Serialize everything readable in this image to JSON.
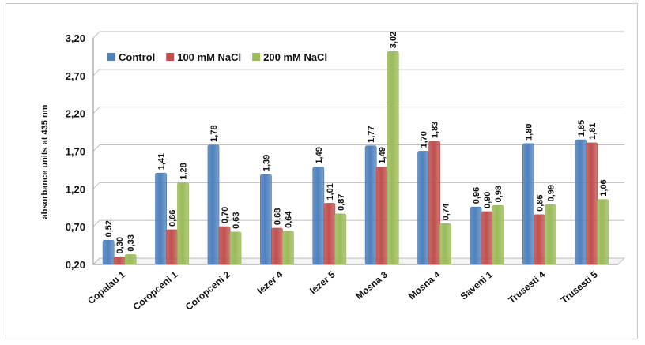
{
  "chart_data": {
    "type": "bar",
    "ylabel": "absorbance units at 435 nm",
    "xlabel": "",
    "ylim": [
      0.2,
      3.2
    ],
    "yticks": [
      "0,20",
      "0,70",
      "1,20",
      "1,70",
      "2,20",
      "2,70",
      "3,20"
    ],
    "ytick_values": [
      0.2,
      0.7,
      1.2,
      1.7,
      2.2,
      2.7,
      3.2
    ],
    "grid": true,
    "legend_placement": "top-left",
    "categories": [
      "Copalau 1",
      "Coropceni 1",
      "Coropceni 2",
      "Iezer 4",
      "Iezer 5",
      "Mosna 3",
      "Mosna 4",
      "Saveni 1",
      "Trusesti 4",
      "Trusesti 5"
    ],
    "series": [
      {
        "name": "Control",
        "color": "#4f81bd",
        "values": [
          0.52,
          1.41,
          1.78,
          1.39,
          1.49,
          1.77,
          1.7,
          0.96,
          1.8,
          1.85
        ],
        "labels": [
          "0,52",
          "1,41",
          "1,78",
          "1,39",
          "1,49",
          "1,77",
          "1,70",
          "0,96",
          "1,80",
          "1,85"
        ]
      },
      {
        "name": "100 mM NaCl",
        "color": "#c0504d",
        "values": [
          0.3,
          0.66,
          0.7,
          0.68,
          1.01,
          1.49,
          1.83,
          0.9,
          0.86,
          1.81
        ],
        "labels": [
          "0,30",
          "0,66",
          "0,70",
          "0,68",
          "1,01",
          "1,49",
          "1,83",
          "0,90",
          "0,86",
          "1,81"
        ]
      },
      {
        "name": "200 mM NaCl",
        "color": "#9bbb59",
        "values": [
          0.33,
          1.28,
          0.63,
          0.64,
          0.87,
          3.02,
          0.74,
          0.98,
          0.99,
          1.06
        ],
        "labels": [
          "0,33",
          "1,28",
          "0,63",
          "0,64",
          "0,87",
          "3,02",
          "0,74",
          "0,98",
          "0,99",
          "1,06"
        ]
      }
    ]
  }
}
